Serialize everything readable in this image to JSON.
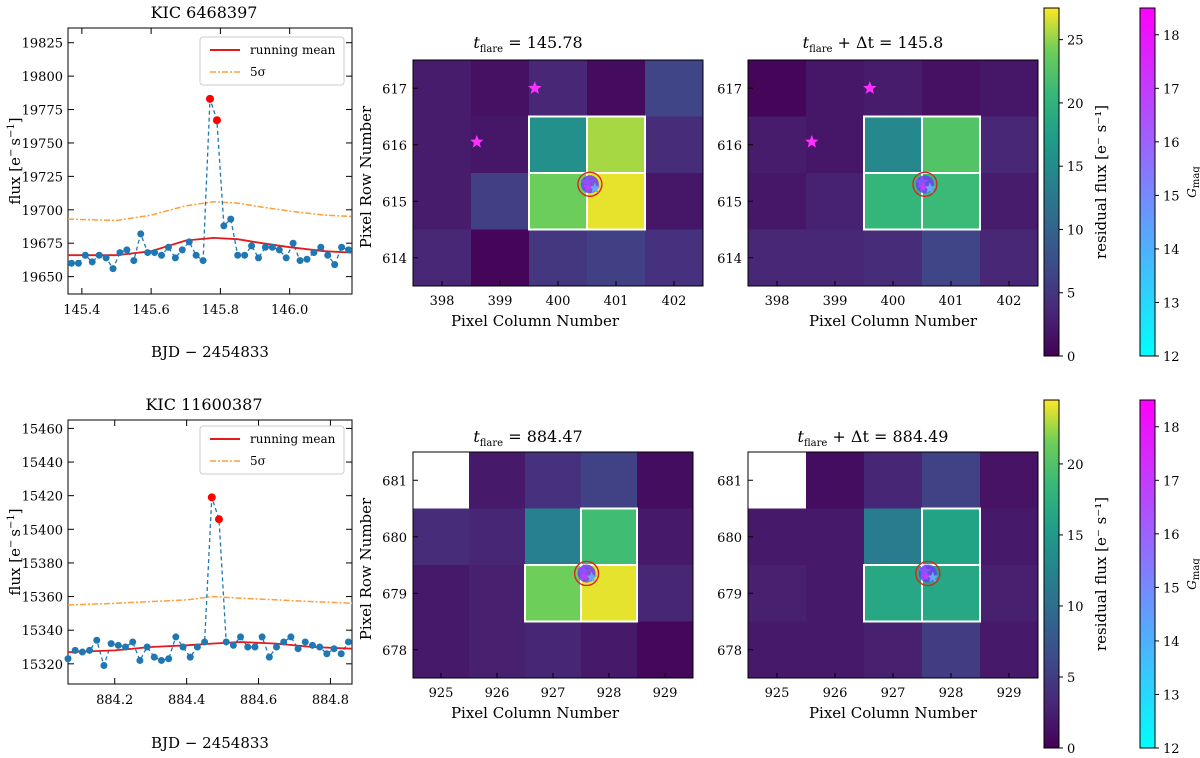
{
  "figure_title": "",
  "colors": {
    "data": "#1f77b4",
    "mean": "#e41a1c",
    "sigma": "#ff9f3a",
    "flare": "#ff0000",
    "box": "#ffffff",
    "star": "#ff30ff",
    "circle": "#d62728"
  },
  "icons": {
    "star": "star-icon"
  },
  "chart_data": [
    {
      "type": "line",
      "title": "KIC 6468397",
      "xlabel": "BJD − 2454833",
      "ylabel_main": "flux [e",
      "ylabel_sup": "−",
      "ylabel_mid": "s",
      "ylabel_sup2": "−1",
      "ylabel_end": "]",
      "xlim": [
        145.36,
        146.18
      ],
      "ylim": [
        19637,
        19836
      ],
      "xticks": [
        145.4,
        145.6,
        145.8,
        146.0
      ],
      "xtick_labels": [
        "145.4",
        "145.6",
        "145.8",
        "146.0"
      ],
      "yticks": [
        19650,
        19675,
        19700,
        19725,
        19750,
        19775,
        19800,
        19825
      ],
      "ytick_labels": [
        "19650",
        "19675",
        "19700",
        "19725",
        "19750",
        "19775",
        "19800",
        "19825"
      ],
      "legend": [
        "running mean",
        "5σ"
      ],
      "series": [
        {
          "name": "flux",
          "x": [
            145.37,
            145.39,
            145.41,
            145.43,
            145.45,
            145.47,
            145.49,
            145.51,
            145.53,
            145.55,
            145.57,
            145.59,
            145.61,
            145.63,
            145.65,
            145.67,
            145.69,
            145.71,
            145.73,
            145.75,
            145.77,
            145.79,
            145.81,
            145.83,
            145.85,
            145.87,
            145.89,
            145.91,
            145.93,
            145.95,
            145.97,
            145.99,
            146.01,
            146.03,
            146.05,
            146.07,
            146.09,
            146.11,
            146.13,
            146.15,
            146.17
          ],
          "y": [
            19660,
            19660,
            19666,
            19661,
            19666,
            19664,
            19656,
            19668,
            19670,
            19662,
            19682,
            19668,
            19668,
            19666,
            19672,
            19664,
            19670,
            19676,
            19666,
            19662,
            19783,
            19767,
            19688,
            19693,
            19666,
            19666,
            19673,
            19664,
            19672,
            19672,
            19670,
            19664,
            19675,
            19662,
            19663,
            19668,
            19672,
            19666,
            19659,
            19672,
            19670
          ],
          "flare_x": [
            145.77,
            145.79
          ],
          "flare_y": [
            19783,
            19767
          ]
        },
        {
          "name": "running mean",
          "x": [
            145.36,
            145.5,
            145.6,
            145.7,
            145.78,
            145.85,
            145.92,
            146.0,
            146.1,
            146.18
          ],
          "y": [
            19666,
            19666,
            19669,
            19677,
            19679,
            19678,
            19675,
            19672,
            19669,
            19668
          ]
        },
        {
          "name": "5σ",
          "x": [
            145.36,
            145.5,
            145.6,
            145.7,
            145.78,
            145.85,
            145.92,
            146.0,
            146.1,
            146.18
          ],
          "y": [
            19693,
            19692,
            19696,
            19703,
            19706,
            19705,
            19702,
            19699,
            19696,
            19695
          ]
        }
      ]
    },
    {
      "type": "heatmap",
      "title_main": "t",
      "title_sub": "flare",
      "title_tail": " = 145.78",
      "xlabel": "Pixel Column Number",
      "ylabel": "Pixel Row Number",
      "cols": [
        398,
        399,
        400,
        401,
        402
      ],
      "rows": [
        617,
        616,
        615,
        614
      ],
      "values": [
        [
          2.5,
          1.5,
          3.5,
          1.0,
          6.5
        ],
        [
          2.5,
          2.0,
          15.5,
          25.5,
          4.0
        ],
        [
          2.5,
          6.0,
          24.0,
          27.0,
          2.0
        ],
        [
          3.5,
          0.5,
          5.0,
          6.0,
          4.5
        ]
      ],
      "aperture": [
        [
          1,
          2
        ],
        [
          1,
          3
        ],
        [
          2,
          2
        ],
        [
          2,
          3
        ]
      ],
      "vmin": 0,
      "vmax": 27.5,
      "stars": [
        {
          "col": 399.6,
          "row": 617.0
        },
        {
          "col": 398.6,
          "row": 616.05
        }
      ],
      "target": {
        "col": 400.55,
        "row": 615.3
      }
    },
    {
      "type": "heatmap",
      "title_main": "t",
      "title_sub": "flare",
      "title_tail": " + Δt = 145.8",
      "xlabel": "Pixel Column Number",
      "ylabel": "",
      "cols": [
        398,
        399,
        400,
        401,
        402
      ],
      "rows": [
        617,
        616,
        615,
        614
      ],
      "values": [
        [
          0.5,
          2.0,
          2.5,
          1.5,
          2.0
        ],
        [
          2.5,
          2.0,
          14.5,
          22.5,
          3.5
        ],
        [
          2.0,
          3.0,
          20.5,
          21.0,
          2.5
        ],
        [
          3.5,
          3.5,
          4.0,
          6.5,
          3.5
        ]
      ],
      "aperture": [
        [
          1,
          2
        ],
        [
          1,
          3
        ],
        [
          2,
          2
        ],
        [
          2,
          3
        ]
      ],
      "vmin": 0,
      "vmax": 27.5,
      "stars": [
        {
          "col": 399.6,
          "row": 617.0
        },
        {
          "col": 398.6,
          "row": 616.05
        }
      ],
      "target": {
        "col": 400.55,
        "row": 615.3
      }
    },
    {
      "type": "colorbar",
      "cmap": "viridis",
      "label": "residual flux [e⁻ s⁻¹]",
      "vmin": 0,
      "vmax": 27.5,
      "ticks": [
        0,
        5,
        10,
        15,
        20,
        25
      ],
      "tick_labels": [
        "0",
        "5",
        "10",
        "15",
        "20",
        "25"
      ]
    },
    {
      "type": "colorbar",
      "cmap": "cool",
      "label_main": "G",
      "label_sub": "mag",
      "vmin": 12,
      "vmax": 18.5,
      "ticks": [
        12,
        13,
        14,
        15,
        16,
        17,
        18
      ],
      "tick_labels": [
        "12",
        "13",
        "14",
        "15",
        "16",
        "17",
        "18"
      ]
    },
    {
      "type": "line",
      "title": "KIC 11600387",
      "xlabel": "BJD − 2454833",
      "ylabel_main": "flux [e",
      "ylabel_sup": "−",
      "ylabel_mid": "s",
      "ylabel_sup2": "−1",
      "ylabel_end": "]",
      "xlim": [
        884.07,
        884.86
      ],
      "ylim": [
        15308,
        15465
      ],
      "xticks": [
        884.2,
        884.4,
        884.6,
        884.8
      ],
      "xtick_labels": [
        "884.2",
        "884.4",
        "884.6",
        "884.8"
      ],
      "yticks": [
        15320,
        15340,
        15360,
        15380,
        15400,
        15420,
        15440,
        15460
      ],
      "ytick_labels": [
        "15320",
        "15340",
        "15360",
        "15380",
        "15400",
        "15420",
        "15440",
        "15460"
      ],
      "legend": [
        "running mean",
        "5σ"
      ],
      "series": [
        {
          "name": "flux",
          "x": [
            884.07,
            884.09,
            884.11,
            884.13,
            884.15,
            884.17,
            884.19,
            884.21,
            884.23,
            884.25,
            884.27,
            884.29,
            884.31,
            884.33,
            884.35,
            884.37,
            884.39,
            884.41,
            884.43,
            884.45,
            884.47,
            884.49,
            884.51,
            884.53,
            884.55,
            884.57,
            884.59,
            884.61,
            884.63,
            884.65,
            884.67,
            884.69,
            884.71,
            884.73,
            884.75,
            884.77,
            884.79,
            884.81,
            884.83,
            884.85
          ],
          "y": [
            15323,
            15328,
            15327,
            15328,
            15334,
            15319,
            15332,
            15331,
            15330,
            15333,
            15322,
            15330,
            15324,
            15322,
            15323,
            15336,
            15330,
            15324,
            15330,
            15333,
            15419,
            15406,
            15333,
            15331,
            15336,
            15330,
            15330,
            15336,
            15324,
            15330,
            15333,
            15336,
            15329,
            15333,
            15331,
            15330,
            15326,
            15329,
            15326,
            15333
          ],
          "flare_x": [
            884.47,
            884.49
          ],
          "flare_y": [
            15419,
            15406
          ]
        },
        {
          "name": "running mean",
          "x": [
            884.07,
            884.2,
            884.3,
            884.4,
            884.47,
            884.55,
            884.65,
            884.75,
            884.86
          ],
          "y": [
            15327,
            15328,
            15330,
            15331,
            15332,
            15333,
            15332,
            15330,
            15329
          ]
        },
        {
          "name": "5σ",
          "x": [
            884.07,
            884.2,
            884.3,
            884.4,
            884.47,
            884.55,
            884.65,
            884.75,
            884.86
          ],
          "y": [
            15355,
            15356,
            15357,
            15358,
            15360,
            15359,
            15358,
            15357,
            15356
          ]
        }
      ]
    },
    {
      "type": "heatmap",
      "title_main": "t",
      "title_sub": "flare",
      "title_tail": " = 884.47",
      "xlabel": "Pixel Column Number",
      "ylabel": "Pixel Row Number",
      "cols": [
        925,
        926,
        927,
        928,
        929
      ],
      "rows": [
        681,
        680,
        679,
        678
      ],
      "values": [
        [
          null,
          2.0,
          4.0,
          5.5,
          1.0
        ],
        [
          3.5,
          3.0,
          12.0,
          19.0,
          2.0
        ],
        [
          2.0,
          2.5,
          21.5,
          24.0,
          3.0
        ],
        [
          2.0,
          2.5,
          3.0,
          2.0,
          0.5
        ]
      ],
      "aperture": [
        [
          1,
          3
        ],
        [
          2,
          2
        ],
        [
          2,
          3
        ]
      ],
      "vmin": 0,
      "vmax": 24.5,
      "stars": [
        {
          "col": 927.55,
          "row": 679.4
        }
      ],
      "target": {
        "col": 927.6,
        "row": 679.35
      }
    },
    {
      "type": "heatmap",
      "title_main": "t",
      "title_sub": "flare",
      "title_tail": " + Δt = 884.49",
      "xlabel": "Pixel Column Number",
      "ylabel": "",
      "cols": [
        925,
        926,
        927,
        928,
        929
      ],
      "rows": [
        681,
        680,
        679,
        678
      ],
      "values": [
        [
          null,
          1.0,
          3.0,
          5.5,
          1.5
        ],
        [
          2.0,
          2.0,
          11.5,
          16.0,
          2.0
        ],
        [
          2.5,
          2.0,
          16.5,
          16.5,
          2.5
        ],
        [
          2.0,
          2.0,
          2.5,
          5.0,
          2.0
        ]
      ],
      "aperture": [
        [
          1,
          3
        ],
        [
          2,
          2
        ],
        [
          2,
          3
        ]
      ],
      "vmin": 0,
      "vmax": 24.5,
      "stars": [
        {
          "col": 927.55,
          "row": 679.4
        }
      ],
      "target": {
        "col": 927.6,
        "row": 679.35
      }
    },
    {
      "type": "colorbar",
      "cmap": "viridis",
      "label": "residual flux [e⁻ s⁻¹]",
      "vmin": 0,
      "vmax": 24.5,
      "ticks": [
        0,
        5,
        10,
        15,
        20
      ],
      "tick_labels": [
        "0",
        "5",
        "10",
        "15",
        "20"
      ]
    },
    {
      "type": "colorbar",
      "cmap": "cool",
      "label_main": "G",
      "label_sub": "mag",
      "vmin": 12,
      "vmax": 18.5,
      "ticks": [
        12,
        13,
        14,
        15,
        16,
        17,
        18
      ],
      "tick_labels": [
        "12",
        "13",
        "14",
        "15",
        "16",
        "17",
        "18"
      ]
    }
  ]
}
